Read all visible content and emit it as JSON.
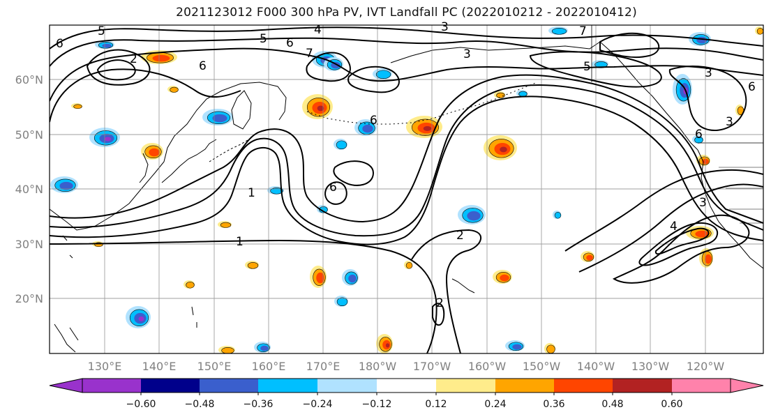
{
  "title": "2021123012 F000 300 hPa PV, IVT Landfall PC (2022010212 - 2022010412)",
  "lat_ticks": [
    "60°N",
    "50°N",
    "40°N",
    "30°N",
    "20°N"
  ],
  "lon_ticks": [
    "130°E",
    "140°E",
    "150°E",
    "160°E",
    "170°E",
    "180°W",
    "170°W",
    "160°W",
    "150°W",
    "140°W",
    "130°W",
    "120°W"
  ],
  "contour_labels": [
    "5",
    "6",
    "4",
    "5",
    "3",
    "7",
    "3",
    "5",
    "3",
    "6",
    "2",
    "6",
    "7",
    "6",
    "1",
    "6",
    "2",
    "2",
    "1",
    "3",
    "4",
    "6",
    "3",
    "6"
  ],
  "colorbar": {
    "ticks": [
      "−0.60",
      "−0.48",
      "−0.36",
      "−0.24",
      "−0.12",
      "0.12",
      "0.24",
      "0.36",
      "0.48",
      "0.60"
    ],
    "colors": [
      "#9932cc",
      "#00008b",
      "#3a5fcd",
      "#00bfff",
      "#b0e2ff",
      "#ffffff",
      "#ffec8b",
      "#ffa500",
      "#ff4500",
      "#b22222",
      "#ff82ab"
    ]
  },
  "shading_colors": {
    "neg_light": "#b0e2ff",
    "neg_mid": "#00bfff",
    "neg_dark": "#3a5fcd",
    "neg_deep": "#9932cc",
    "pos_light": "#ffec8b",
    "pos_mid": "#ffa500",
    "pos_dark": "#ff4500",
    "pos_deep": "#b22222"
  }
}
